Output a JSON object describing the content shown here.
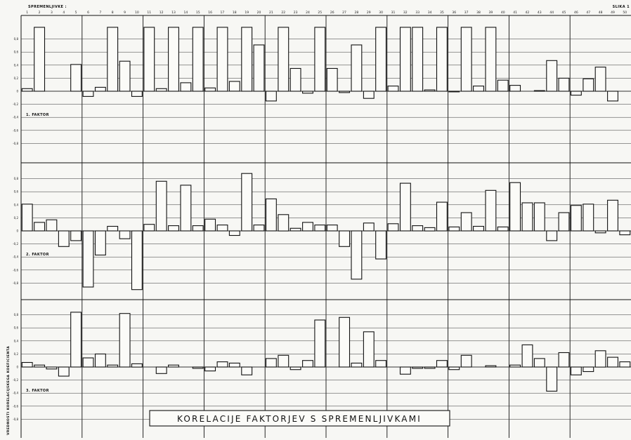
{
  "header": {
    "label": "SPREMENLJIVKE :",
    "figure": "SLIKA 1"
  },
  "ylabel": "VREDNOSTI KORELACIJSKEGA KOEFICIENTA",
  "caption": "KORELACIJE FAKTORJEV S SPREMENLJIVKAMI",
  "chart_data": [
    {
      "type": "bar",
      "title": "1. FAKTOR",
      "ylim": [
        -0.8,
        1.0
      ],
      "yticks": [
        "0,8",
        "0,6",
        "0,4",
        "0,2",
        "0",
        "-0,2",
        "-0,4",
        "-0,6",
        "-0,8"
      ],
      "categories": [
        "1",
        "2",
        "3",
        "4",
        "5",
        "6",
        "7",
        "8",
        "9",
        "10",
        "11",
        "12",
        "13",
        "14",
        "15",
        "16",
        "17",
        "18",
        "19",
        "20",
        "21",
        "22",
        "23",
        "24",
        "25",
        "26",
        "27",
        "28",
        "29",
        "30",
        "31",
        "32",
        "33",
        "34",
        "35",
        "36",
        "37",
        "38",
        "39",
        "40",
        "41",
        "42",
        "43",
        "44",
        "45",
        "46",
        "47",
        "48",
        "49",
        "50"
      ],
      "values": [
        0.04,
        0.98,
        0,
        0,
        0.41,
        -0.08,
        0.06,
        0.98,
        0.46,
        -0.08,
        0.98,
        0.04,
        0.98,
        0.13,
        0.98,
        0.05,
        0.98,
        0.15,
        0.98,
        0.71,
        -0.15,
        0.98,
        0.35,
        -0.03,
        0.98,
        0.35,
        -0.02,
        0.71,
        -0.11,
        0.98,
        0.08,
        0.98,
        0.98,
        0.02,
        0.98,
        -0.01,
        0.98,
        0.08,
        0.98,
        0.17,
        0.09,
        0,
        0.01,
        0.47,
        0.2,
        -0.06,
        0.19,
        0.37,
        -0.15,
        0
      ]
    },
    {
      "type": "bar",
      "title": "2. FAKTOR",
      "ylim": [
        -0.8,
        1.0
      ],
      "yticks": [
        "0,8",
        "0,6",
        "0,4",
        "0,2",
        "0",
        "-0,2",
        "-0,4",
        "-0,6",
        "-0,8"
      ],
      "categories": [
        "1",
        "2",
        "3",
        "4",
        "5",
        "6",
        "7",
        "8",
        "9",
        "10",
        "11",
        "12",
        "13",
        "14",
        "15",
        "16",
        "17",
        "18",
        "19",
        "20",
        "21",
        "22",
        "23",
        "24",
        "25",
        "26",
        "27",
        "28",
        "29",
        "30",
        "31",
        "32",
        "33",
        "34",
        "35",
        "36",
        "37",
        "38",
        "39",
        "40",
        "41",
        "42",
        "43",
        "44",
        "45",
        "46",
        "47",
        "48",
        "49",
        "50"
      ],
      "values": [
        0.41,
        0.13,
        0.17,
        -0.24,
        -0.15,
        -0.86,
        -0.37,
        0.07,
        -0.12,
        -0.9,
        0.1,
        0.76,
        0.08,
        0.7,
        0.08,
        0.18,
        0.09,
        -0.07,
        0.88,
        0.09,
        0.49,
        0.25,
        0.04,
        0.13,
        0.09,
        0.09,
        -0.24,
        -0.74,
        0.12,
        -0.43,
        0.11,
        0.73,
        0.08,
        0.05,
        0.44,
        0.06,
        0.28,
        0.07,
        0.62,
        0.06,
        0.74,
        0.43,
        0.43,
        -0.15,
        0.28,
        0.39,
        0.41,
        -0.03,
        0.47,
        -0.06
      ]
    },
    {
      "type": "bar",
      "title": "3. FAKTOR",
      "ylim": [
        -0.8,
        1.0
      ],
      "yticks": [
        "0,8",
        "0,6",
        "0,4",
        "0,2",
        "0",
        "-0,2",
        "-0,4",
        "-0,6",
        "-0,8"
      ],
      "categories": [
        "1",
        "2",
        "3",
        "4",
        "5",
        "6",
        "7",
        "8",
        "9",
        "10",
        "11",
        "12",
        "13",
        "14",
        "15",
        "16",
        "17",
        "18",
        "19",
        "20",
        "21",
        "22",
        "23",
        "24",
        "25",
        "26",
        "27",
        "28",
        "29",
        "30",
        "31",
        "32",
        "33",
        "34",
        "35",
        "36",
        "37",
        "38",
        "39",
        "40",
        "41",
        "42",
        "43",
        "44",
        "45",
        "46",
        "47",
        "48",
        "49",
        "50"
      ],
      "values": [
        0.07,
        0.03,
        -0.03,
        -0.14,
        0.84,
        0.14,
        0.2,
        0.03,
        0.82,
        0.05,
        0,
        -0.1,
        0.03,
        0,
        -0.02,
        -0.06,
        0.08,
        0.06,
        -0.12,
        0,
        0.13,
        0.18,
        -0.04,
        0.1,
        0.72,
        0,
        0.76,
        0.06,
        0.54,
        0.1,
        0,
        -0.11,
        -0.02,
        -0.02,
        0.1,
        -0.04,
        0.18,
        0,
        0.02,
        0,
        0.03,
        0.34,
        0.13,
        -0.37,
        0.22,
        -0.12,
        -0.07,
        0.25,
        0.15,
        0.08
      ]
    }
  ]
}
